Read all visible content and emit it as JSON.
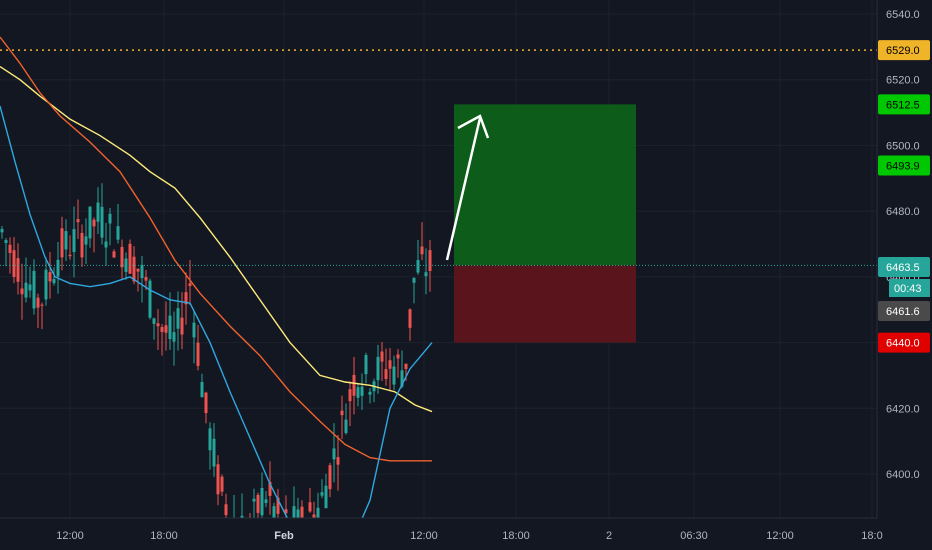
{
  "theme": {
    "background": "#131722",
    "grid": "#1e222d",
    "up_candle": "#26a69a",
    "down_candle": "#ef5350",
    "profit_zone": "#0d5c1a",
    "loss_zone": "#5a141c"
  },
  "chart_data": {
    "type": "candlestick",
    "y_axis": {
      "ticks": [
        6400.0,
        6420.0,
        6440.0,
        6460.0,
        6480.0,
        6500.0,
        6520.0,
        6540.0
      ],
      "tick_labels": [
        "6400.0",
        "6420.0",
        "6440.0",
        "6460.0",
        "6480.0",
        "6500.0",
        "6520.0",
        "6540.0"
      ],
      "range": [
        6383,
        6545
      ]
    },
    "x_axis": {
      "tick_labels": [
        "12:00",
        "18:00",
        "Feb",
        "12:00",
        "18:00",
        "2",
        "06:30",
        "12:00",
        "18:0"
      ],
      "bold_labels": [
        "Feb"
      ]
    },
    "price_tags": [
      {
        "value": 6529.0,
        "label": "6529.0",
        "bg": "#f0b429",
        "fg": "#000000"
      },
      {
        "value": 6512.5,
        "label": "6512.5",
        "bg": "#00c800",
        "fg": "#000000"
      },
      {
        "value": 6493.9,
        "label": "6493.9",
        "bg": "#00c800",
        "fg": "#000000"
      },
      {
        "value": 6463.5,
        "label": "6463.5",
        "bg": "#26a69a",
        "fg": "#ffffff"
      },
      {
        "value": 6461.6,
        "label": "6461.6",
        "bg": "#4a4a4a",
        "fg": "#ffffff"
      },
      {
        "value": 6440.0,
        "label": "6440.0",
        "bg": "#e00000",
        "fg": "#ffffff"
      }
    ],
    "countdown_label": "00:43",
    "horizontal_lines": [
      {
        "value": 6529.0,
        "color": "#f0b429",
        "style": "dotted"
      },
      {
        "value": 6463.5,
        "color": "#26a69a",
        "style": "dotted"
      }
    ],
    "position": {
      "entry": 6463.5,
      "target": 6512.5,
      "stop": 6440.0
    },
    "series": [
      {
        "color": "#ffeb7a",
        "points": [
          [
            0,
            6524
          ],
          [
            20,
            6520
          ],
          [
            40,
            6515
          ],
          [
            70,
            6508
          ],
          [
            100,
            6503
          ],
          [
            130,
            6497
          ],
          [
            150,
            6492
          ],
          [
            175,
            6487
          ],
          [
            200,
            6478
          ],
          [
            230,
            6466
          ],
          [
            260,
            6453
          ],
          [
            290,
            6440
          ],
          [
            320,
            6430
          ],
          [
            345,
            6428
          ],
          [
            370,
            6427
          ],
          [
            395,
            6425
          ],
          [
            415,
            6421
          ],
          [
            432,
            6419
          ]
        ]
      },
      {
        "color": "#f0622d",
        "points": [
          [
            0,
            6533
          ],
          [
            20,
            6525
          ],
          [
            40,
            6516
          ],
          [
            60,
            6509
          ],
          [
            90,
            6501
          ],
          [
            120,
            6492
          ],
          [
            150,
            6478
          ],
          [
            175,
            6465
          ],
          [
            200,
            6455
          ],
          [
            230,
            6445
          ],
          [
            260,
            6436
          ],
          [
            290,
            6425
          ],
          [
            320,
            6416
          ],
          [
            345,
            6409
          ],
          [
            370,
            6405
          ],
          [
            390,
            6404
          ],
          [
            410,
            6404
          ],
          [
            432,
            6404
          ]
        ]
      },
      {
        "color": "#2fa8e0",
        "points": [
          [
            0,
            6512
          ],
          [
            15,
            6495
          ],
          [
            30,
            6479
          ],
          [
            45,
            6466
          ],
          [
            55,
            6460
          ],
          [
            70,
            6458
          ],
          [
            90,
            6457
          ],
          [
            110,
            6458
          ],
          [
            130,
            6460
          ],
          [
            150,
            6456
          ],
          [
            170,
            6453
          ],
          [
            190,
            6452
          ],
          [
            210,
            6440
          ],
          [
            230,
            6425
          ],
          [
            250,
            6411
          ],
          [
            270,
            6397
          ],
          [
            290,
            6385
          ],
          [
            310,
            6374
          ],
          [
            330,
            6374
          ],
          [
            350,
            6378
          ],
          [
            370,
            6392
          ],
          [
            390,
            6420
          ],
          [
            410,
            6432
          ],
          [
            432,
            6440
          ]
        ]
      }
    ]
  }
}
